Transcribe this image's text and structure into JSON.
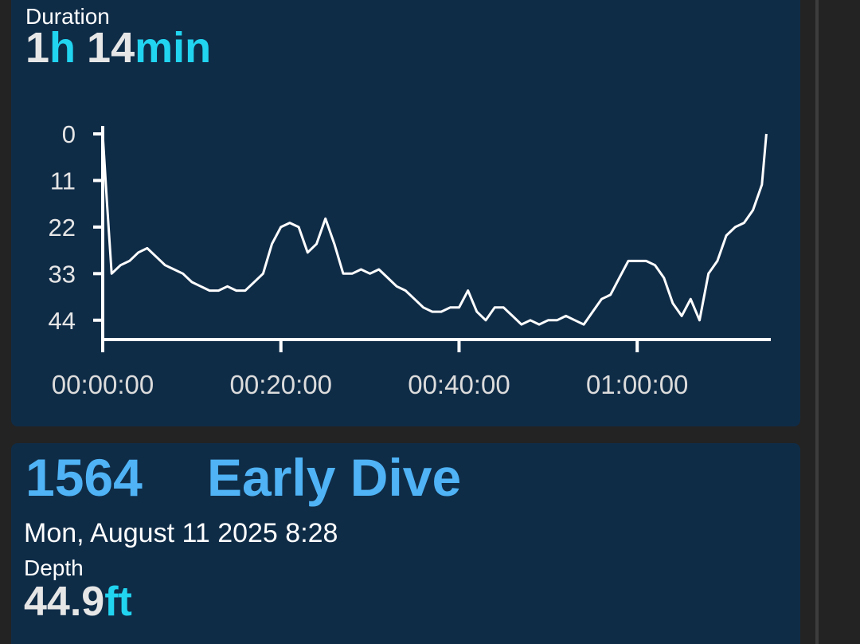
{
  "header": {
    "duration_label": "Duration",
    "duration": {
      "hours": "1",
      "hours_unit": "h",
      "minutes": "14",
      "minutes_unit": "min"
    }
  },
  "chart_data": {
    "type": "line",
    "inverted_y": true,
    "grid": false,
    "color": "#ffffff",
    "x": [
      0,
      0.5,
      1,
      2,
      3,
      4,
      5,
      6,
      7,
      8,
      9,
      10,
      11,
      12,
      13,
      14,
      15,
      16,
      17,
      18,
      19,
      20,
      21,
      22,
      23,
      24,
      25,
      26,
      27,
      28,
      29,
      30,
      31,
      32,
      33,
      34,
      35,
      36,
      37,
      38,
      39,
      40,
      41,
      42,
      43,
      44,
      45,
      46,
      47,
      48,
      49,
      50,
      51,
      52,
      53,
      54,
      55,
      56,
      57,
      58,
      59,
      60,
      61,
      62,
      63,
      64,
      65,
      66,
      67,
      68,
      69,
      70,
      71,
      72,
      73,
      74,
      74.5
    ],
    "values": [
      0,
      17,
      33,
      31,
      30,
      28,
      27,
      29,
      31,
      32,
      33,
      35,
      36,
      37,
      37,
      36,
      37,
      37,
      35,
      33,
      26,
      22,
      21,
      22,
      28,
      26,
      20,
      26,
      33,
      33,
      32,
      33,
      32,
      34,
      36,
      37,
      39,
      41,
      42,
      42,
      41,
      41,
      37,
      42,
      44,
      41,
      41,
      43,
      45,
      44,
      45,
      44,
      44,
      43,
      44,
      45,
      42,
      39,
      38,
      34,
      30,
      30,
      30,
      31,
      34,
      40,
      43,
      39,
      44,
      33,
      30,
      24,
      22,
      21,
      18,
      12,
      0
    ],
    "xlim": [
      0,
      75
    ],
    "ylim": [
      0,
      48
    ],
    "xticks": [
      {
        "value": 0,
        "label": "00:00:00"
      },
      {
        "value": 20,
        "label": "00:20:00"
      },
      {
        "value": 40,
        "label": "00:40:00"
      },
      {
        "value": 60,
        "label": "01:00:00"
      }
    ],
    "yticks": [
      0,
      11,
      22,
      33,
      44
    ]
  },
  "dive": {
    "number": "1564",
    "name": "Early Dive",
    "date": "Mon, August 11 2025 8:28",
    "depth_label": "Depth",
    "depth": "44.9",
    "depth_unit": "ft"
  }
}
